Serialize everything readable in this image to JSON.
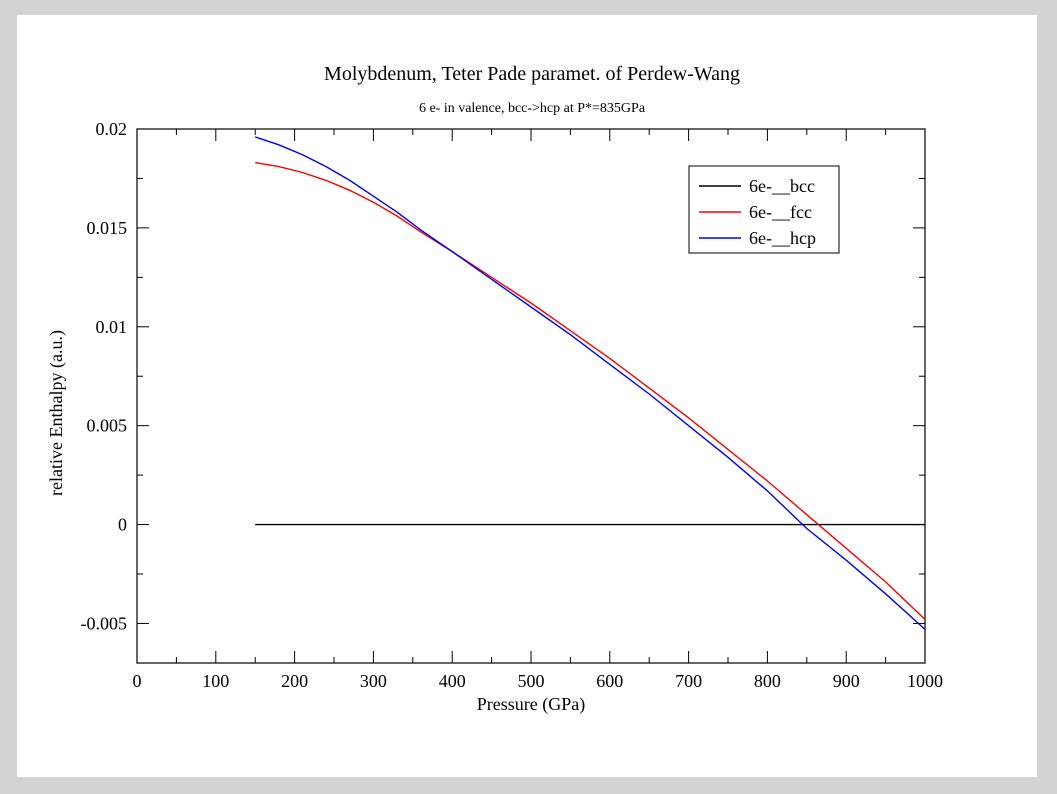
{
  "chart_data": {
    "type": "line",
    "title": "Molybdenum, Teter Pade paramet. of Perdew-Wang",
    "subtitle": "6 e- in valence, bcc->hcp at P*=835GPa",
    "xlabel": "Pressure (GPa)",
    "ylabel": "relative Enthalpy (a.u.)",
    "xlim": [
      0,
      1000
    ],
    "ylim": [
      -0.007,
      0.02
    ],
    "x_ticks": [
      0,
      100,
      200,
      300,
      400,
      500,
      600,
      700,
      800,
      900,
      1000
    ],
    "x_tick_labels": [
      "0",
      "100",
      "200",
      "300",
      "400",
      "500",
      "600",
      "700",
      "800",
      "900",
      "1000"
    ],
    "y_ticks": [
      -0.005,
      0,
      0.005,
      0.01,
      0.015,
      0.02
    ],
    "y_tick_labels": [
      "-0.005",
      "0",
      "0.005",
      "0.01",
      "0.015",
      "0.02"
    ],
    "grid": false,
    "legend_position": "top-right",
    "series": [
      {
        "name": "6e-__bcc",
        "color": "#000000",
        "x": [
          150,
          1000
        ],
        "y": [
          0,
          0
        ]
      },
      {
        "name": "6e-__fcc",
        "color": "#ff0000",
        "x": [
          150,
          180,
          210,
          240,
          270,
          300,
          330,
          360,
          400,
          450,
          500,
          550,
          600,
          650,
          700,
          750,
          800,
          850,
          900,
          950,
          1000
        ],
        "y": [
          0.0183,
          0.0181,
          0.0178,
          0.0174,
          0.0169,
          0.0163,
          0.0156,
          0.0148,
          0.0138,
          0.0125,
          0.0112,
          0.0098,
          0.0084,
          0.0069,
          0.0054,
          0.0038,
          0.0022,
          0.0005,
          -0.0012,
          -0.0029,
          -0.0048
        ]
      },
      {
        "name": "6e-__hcp",
        "color": "#0000ff",
        "x": [
          150,
          180,
          210,
          240,
          270,
          300,
          330,
          360,
          400,
          450,
          500,
          550,
          600,
          650,
          700,
          750,
          800,
          850,
          900,
          950,
          1000
        ],
        "y": [
          0.0196,
          0.0192,
          0.0187,
          0.0181,
          0.0174,
          0.0166,
          0.0158,
          0.0149,
          0.0138,
          0.0124,
          0.011,
          0.0096,
          0.0081,
          0.0066,
          0.005,
          0.0034,
          0.0017,
          -0.0002,
          -0.0018,
          -0.0035,
          -0.0053
        ]
      }
    ]
  }
}
